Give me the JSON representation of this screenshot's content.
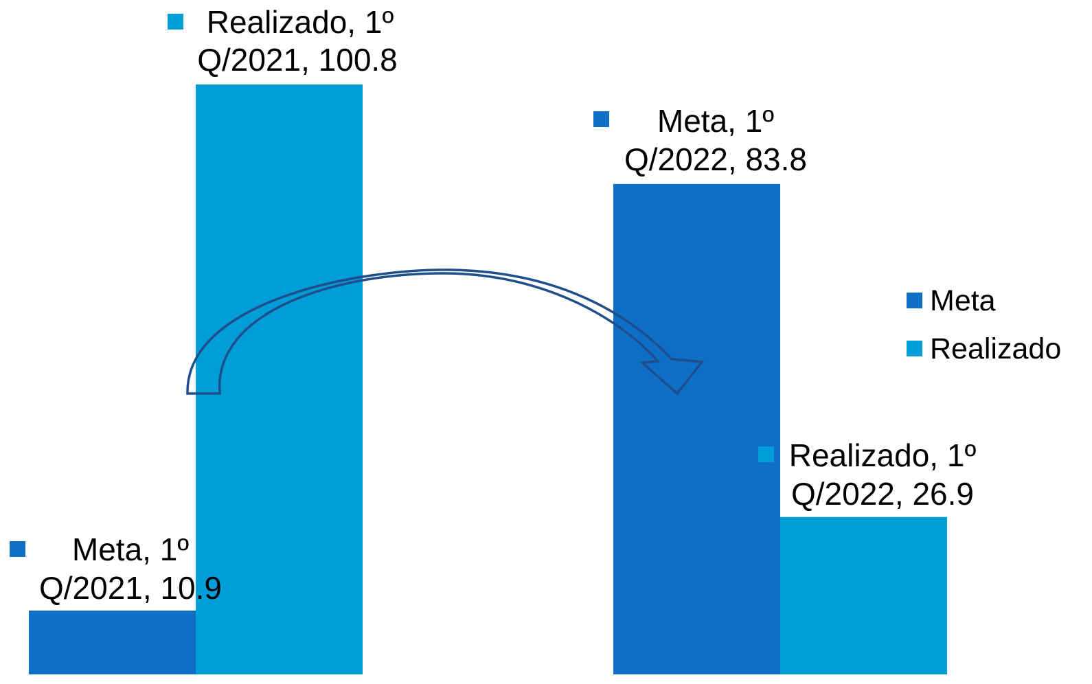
{
  "chart_data": {
    "type": "bar",
    "categories": [
      "1º Q/2021",
      "1º Q/2022"
    ],
    "series": [
      {
        "name": "Meta",
        "values": [
          10.9,
          83.8
        ],
        "color": "#0F6FC6"
      },
      {
        "name": "Realizado",
        "values": [
          100.8,
          26.9
        ],
        "color": "#009DD9"
      }
    ],
    "data_labels": [
      {
        "line1": "Meta, 1º",
        "line2": "Q/2021, 10.9"
      },
      {
        "line1": "Realizado, 1º",
        "line2": "Q/2021, 100.8"
      },
      {
        "line1": "Meta, 1º",
        "line2": "Q/2022, 83.8"
      },
      {
        "line1": "Realizado, 1º",
        "line2": "Q/2022, 26.9"
      }
    ],
    "legend": {
      "position": "right",
      "entries": [
        "Meta",
        "Realizado"
      ]
    },
    "annotation": {
      "type": "curved-arrow",
      "from": "1º Q/2021",
      "to": "1º Q/2022",
      "color": "#1F4E8C"
    },
    "ylim": [
      0,
      100.8
    ],
    "axes_visible": false,
    "grid": false,
    "title": "",
    "xlabel": "",
    "ylabel": ""
  }
}
